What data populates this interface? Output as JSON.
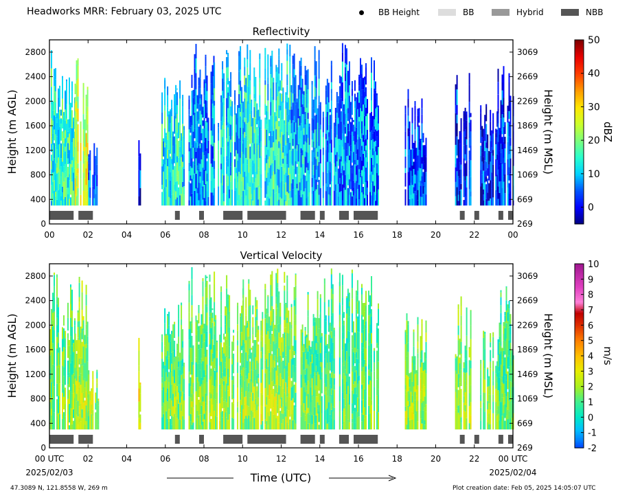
{
  "header": {
    "title": "Headworks MRR:  February 03, 2025 UTC"
  },
  "legend": [
    {
      "label": "BB Height",
      "marker": "dot",
      "color": "#000000"
    },
    {
      "label": "BB",
      "marker": "box",
      "color": "#dddddd"
    },
    {
      "label": "Hybrid",
      "marker": "box",
      "color": "#999999"
    },
    {
      "label": "NBB",
      "marker": "box",
      "color": "#555555"
    }
  ],
  "footer": {
    "location": "47.3089 N, 121.8558 W, 269 m",
    "creation": "Plot creation date: Feb 05, 2025 14:05:07 UTC",
    "xlabel": "Time (UTC)",
    "start_date": "2025/02/03",
    "end_date": "2025/02/04"
  },
  "chart_data": [
    {
      "type": "heatmap",
      "title": "Reflectivity",
      "ylabel": "Height (m AGL)",
      "ylabel_right": "Height (m MSL)",
      "xlim": [
        0,
        24
      ],
      "ylim": [
        0,
        3000
      ],
      "x_ticks": [
        "00",
        "02",
        "04",
        "06",
        "08",
        "10",
        "12",
        "14",
        "16",
        "18",
        "20",
        "22",
        "00"
      ],
      "y_ticks": [
        0,
        400,
        800,
        1200,
        1600,
        2000,
        2400,
        2800
      ],
      "y_ticks_right": [
        269,
        669,
        1069,
        1469,
        1869,
        2269,
        2669,
        3069
      ],
      "colorbar": {
        "label": "dBZ",
        "ticks": [
          0,
          10,
          20,
          30,
          40,
          50
        ],
        "range": [
          -5,
          50
        ]
      },
      "nbb_segments": [
        [
          0.0,
          1.25
        ],
        [
          1.5,
          2.25
        ],
        [
          6.5,
          6.75
        ],
        [
          7.75,
          8.0
        ],
        [
          9.0,
          10.0
        ],
        [
          10.25,
          12.25
        ],
        [
          13.0,
          13.75
        ],
        [
          14.0,
          14.25
        ],
        [
          15.0,
          15.5
        ],
        [
          15.75,
          17.0
        ],
        [
          21.25,
          21.5
        ],
        [
          22.0,
          22.25
        ],
        [
          23.25,
          23.5
        ],
        [
          23.75,
          24.0
        ]
      ],
      "echo_periods": [
        [
          0.0,
          1.3,
          2900,
          15
        ],
        [
          1.3,
          2.0,
          2950,
          26
        ],
        [
          2.0,
          2.5,
          1400,
          8
        ],
        [
          4.6,
          4.7,
          1800,
          2
        ],
        [
          5.8,
          7.0,
          2400,
          14
        ],
        [
          7.2,
          8.5,
          2950,
          8
        ],
        [
          8.5,
          10.0,
          2950,
          12
        ],
        [
          10.0,
          12.5,
          2950,
          14
        ],
        [
          12.5,
          14.0,
          2950,
          10
        ],
        [
          14.0,
          15.0,
          2950,
          8
        ],
        [
          15.0,
          16.0,
          2950,
          7
        ],
        [
          16.0,
          17.0,
          2800,
          7
        ],
        [
          18.4,
          19.5,
          2200,
          5
        ],
        [
          21.0,
          21.8,
          2500,
          3
        ],
        [
          22.3,
          23.2,
          2000,
          3
        ],
        [
          23.2,
          24.0,
          2700,
          4
        ]
      ]
    },
    {
      "type": "heatmap",
      "title": "Vertical Velocity",
      "ylabel": "Height (m AGL)",
      "ylabel_right": "Height (m MSL)",
      "xlim": [
        0,
        24
      ],
      "ylim": [
        0,
        3000
      ],
      "x_ticks": [
        "00 UTC",
        "02",
        "04",
        "06",
        "08",
        "10",
        "12",
        "14",
        "16",
        "18",
        "20",
        "22",
        "00 UTC"
      ],
      "y_ticks": [
        0,
        400,
        800,
        1200,
        1600,
        2000,
        2400,
        2800
      ],
      "y_ticks_right": [
        269,
        669,
        1069,
        1469,
        1869,
        2269,
        2669,
        3069
      ],
      "colorbar": {
        "label": "m/s",
        "ticks": [
          -2,
          -1,
          0,
          1,
          2,
          3,
          4,
          5,
          6,
          7,
          8,
          9,
          10
        ],
        "range": [
          -2,
          10
        ]
      },
      "nbb_segments": [
        [
          0.0,
          1.25
        ],
        [
          1.5,
          2.25
        ],
        [
          6.5,
          6.75
        ],
        [
          7.75,
          8.0
        ],
        [
          9.0,
          10.0
        ],
        [
          10.25,
          12.25
        ],
        [
          13.0,
          13.75
        ],
        [
          14.0,
          14.25
        ],
        [
          15.0,
          15.5
        ],
        [
          15.75,
          17.0
        ],
        [
          21.25,
          21.5
        ],
        [
          22.0,
          22.25
        ],
        [
          23.25,
          23.5
        ],
        [
          23.75,
          24.0
        ]
      ],
      "echo_periods": [
        [
          0.0,
          1.3,
          2900,
          1.2
        ],
        [
          1.3,
          2.0,
          2950,
          1.8
        ],
        [
          2.0,
          2.5,
          1400,
          1.5
        ],
        [
          4.6,
          4.7,
          1800,
          2.5
        ],
        [
          5.8,
          7.0,
          2400,
          1.0
        ],
        [
          7.2,
          8.5,
          2950,
          1.2
        ],
        [
          8.5,
          10.0,
          2950,
          1.4
        ],
        [
          10.0,
          12.5,
          2950,
          1.6
        ],
        [
          12.5,
          14.0,
          2950,
          1.0
        ],
        [
          14.0,
          15.0,
          2950,
          0.8
        ],
        [
          15.0,
          16.0,
          2950,
          0.8
        ],
        [
          16.0,
          17.0,
          2800,
          0.9
        ],
        [
          18.4,
          19.5,
          2200,
          1.5
        ],
        [
          21.0,
          21.8,
          2500,
          1.5
        ],
        [
          22.3,
          23.2,
          2000,
          1.2
        ],
        [
          23.2,
          24.0,
          2700,
          0.8
        ]
      ]
    }
  ]
}
